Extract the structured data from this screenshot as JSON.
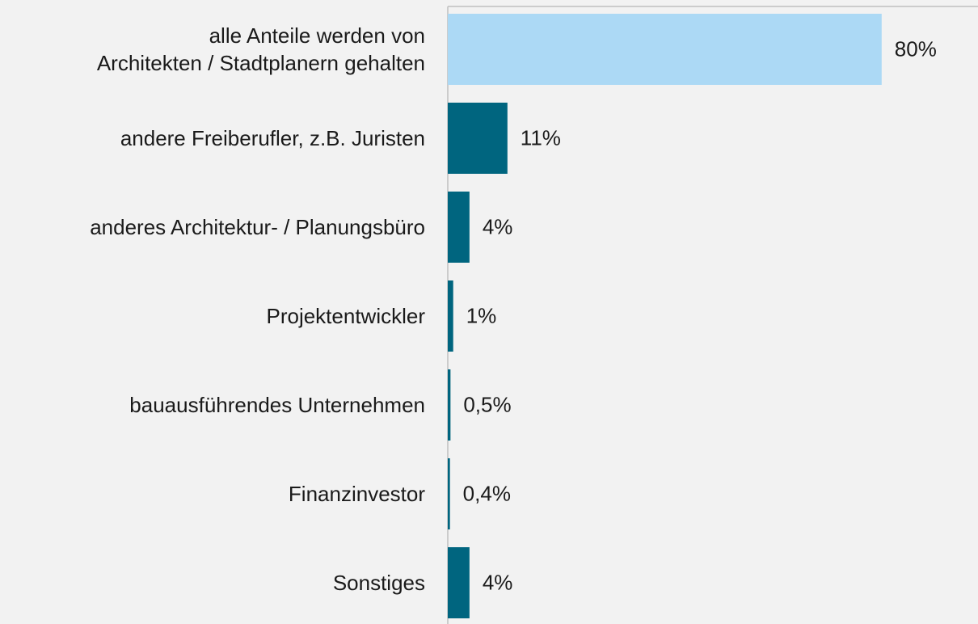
{
  "chart_data": {
    "type": "hbar",
    "categories": [
      "alle Anteile werden von\nArchitekten / Stadtplanern gehalten",
      "andere Freiberufler, z.B. Juristen",
      "anderes Architektur- / Planungsbüro",
      "Projektentwickler",
      "bauausführendes Unternehmen",
      "Finanzinvestor",
      "Sonstiges"
    ],
    "values": [
      80,
      11,
      4,
      1,
      0.5,
      0.4,
      4
    ],
    "value_labels": [
      "80%",
      "11%",
      "4%",
      "1%",
      "0,5%",
      "0,4%",
      "4%"
    ],
    "colors": [
      "#acd9f5",
      "#00657f",
      "#00657f",
      "#00657f",
      "#00657f",
      "#00657f",
      "#00657f"
    ]
  }
}
